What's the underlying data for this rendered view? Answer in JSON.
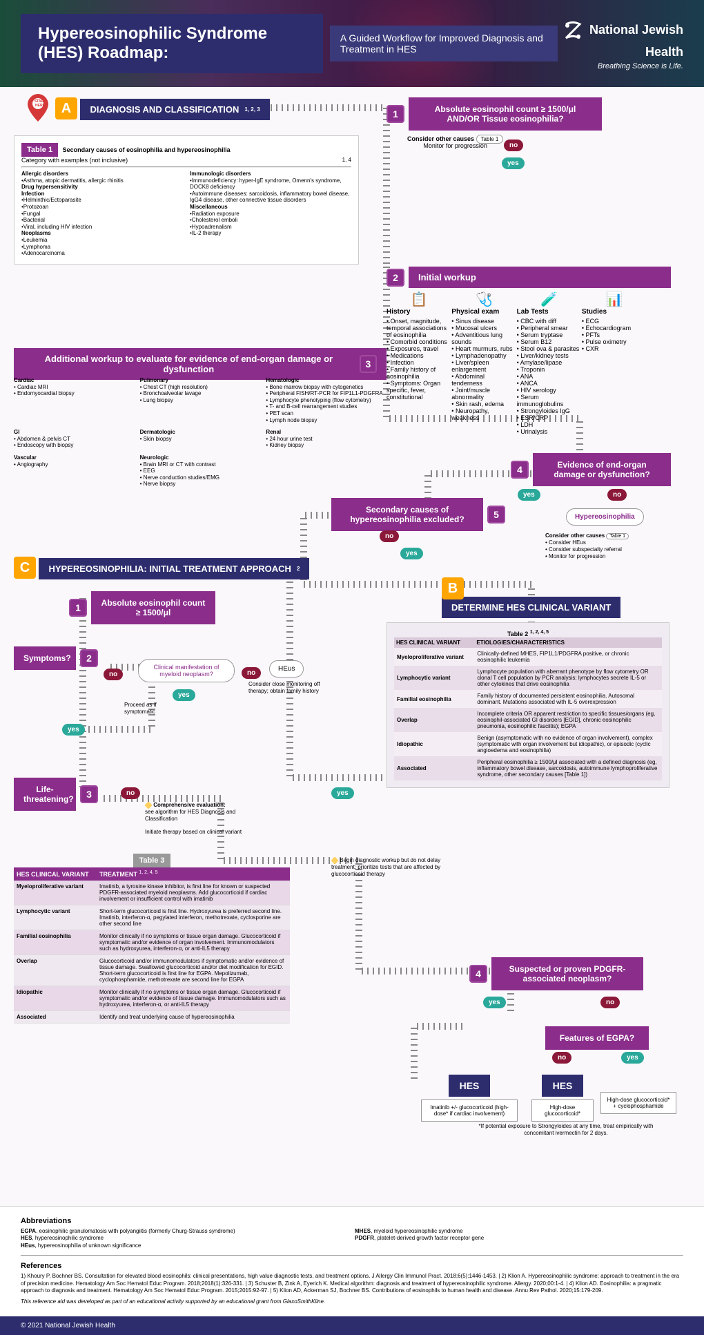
{
  "header": {
    "title": "Hypereosinophilic Syndrome (HES) Roadmap:",
    "subtitle": "A Guided Workflow for Improved Diagnosis and Treatment in HES",
    "org_name": "National Jewish Health",
    "tagline": "Breathing Science is Life."
  },
  "sectionA": {
    "letter": "A",
    "title": "DIAGNOSIS AND CLASSIFICATION",
    "refs": "1, 2, 3",
    "start_here": "START HERE",
    "q1_num": "1",
    "q1": "Absolute eosinophil count ≥ 1500/μl AND/OR Tissue eosinophilia?",
    "consider": "Consider other causes",
    "consider_sub": "Monitor for progression",
    "table1_ref": "Table 1"
  },
  "table1": {
    "label": "Table 1",
    "title": "Secondary causes of eosinophilia and hypereosinophilia",
    "subtitle": "Category with examples (not inclusive)",
    "refs": "1, 4",
    "cols": [
      {
        "h": "Allergic disorders",
        "items": [
          "Asthma, atopic dermatitis, allergic rhinitis"
        ]
      },
      {
        "h": "Drug hypersensitivity",
        "items": []
      },
      {
        "h": "Infection",
        "items": [
          "Helminthic/Ectoparasite",
          "Protozoan",
          "Fungal",
          "Bacterial",
          "Viral, including HIV infection"
        ]
      },
      {
        "h": "Neoplasms",
        "items": [
          "Leukemia",
          "Lymphoma",
          "Adenocarcinoma"
        ]
      },
      {
        "h": "Immunologic disorders",
        "items": [
          "Immunodeficiency: hyper-IgE syndrome, Omenn's syndrome, DOCK8 deficiency",
          "Autoimmune diseases: sarcoidosis, inflammatory bowel disease, IgG4 disease, other connective tissue disorders"
        ]
      },
      {
        "h": "Miscellaneous",
        "items": [
          "Radiation exposure",
          "Cholesterol emboli",
          "Hypoadrenalism",
          "IL-2 therapy"
        ]
      }
    ]
  },
  "workup": {
    "num": "2",
    "title": "Initial workup",
    "cols": [
      {
        "h": "History",
        "items": [
          "Onset, magnitude, temporal associations of eosinophilia",
          "Comorbid conditions",
          "Exposures, travel",
          "Medications",
          "Infection",
          "Family history of eosinophilia",
          "Symptoms: Organ specific, fever, constitutional"
        ]
      },
      {
        "h": "Physical exam",
        "items": [
          "Sinus disease",
          "Mucosal ulcers",
          "Adventitious lung sounds",
          "Heart murmurs, rubs",
          "Lymphadenopathy",
          "Liver/spleen enlargement",
          "Abdominal tenderness",
          "Joint/muscle abnormality",
          "Skin rash, edema",
          "Neuropathy, weakness"
        ]
      },
      {
        "h": "Lab Tests",
        "items": [
          "CBC with diff",
          "Peripheral smear",
          "Serum tryptase",
          "Serum B12",
          "Stool ova & parasites",
          "Liver/kidney tests",
          "Amylase/lipase",
          "Troponin",
          "ANA",
          "ANCA",
          "HIV serology",
          "Serum immunoglobulins",
          "Strongyloides IgG",
          "ESR/CRP",
          "LDH",
          "Urinalysis"
        ]
      },
      {
        "h": "Studies",
        "items": [
          "ECG",
          "Echocardiogram",
          "PFTs",
          "Pulse oximetry",
          "CXR"
        ]
      }
    ]
  },
  "addl_workup": {
    "num": "3",
    "title": "Additional workup to evaluate for evidence of end-organ damage or dysfunction",
    "groups": [
      {
        "h": "Cardiac",
        "items": [
          "Cardiac MRI",
          "Endomyocardial biopsy"
        ]
      },
      {
        "h": "Pulmonary",
        "items": [
          "Chest CT (high resolution)",
          "Bronchoalveolar lavage",
          "Lung biopsy"
        ]
      },
      {
        "h": "Hematologic",
        "items": [
          "Bone marrow biopsy with cytogenetics",
          "Peripheral FISH/RT-PCR for FIP1L1-PDGFRA",
          "Lymphocyte phenotyping (flow cytometry)",
          "T- and B-cell rearrangement studies",
          "PET scan",
          "Lymph node biopsy"
        ]
      },
      {
        "h": "GI",
        "items": [
          "Abdomen & pelvis CT",
          "Endoscopy with biopsy"
        ]
      },
      {
        "h": "Dermatologic",
        "items": [
          "Skin biopsy"
        ]
      },
      {
        "h": "Renal",
        "items": [
          "24 hour urine test",
          "Kidney biopsy"
        ]
      },
      {
        "h": "Vascular",
        "items": [
          "Angiography"
        ]
      },
      {
        "h": "Neurologic",
        "items": [
          "Brain MRI or CT with contrast",
          "EEG",
          "Nerve conduction studies/EMG",
          "Nerve biopsy"
        ]
      }
    ]
  },
  "q4": {
    "num": "4",
    "text": "Evidence of end-organ damage or dysfunction?"
  },
  "q5": {
    "num": "5",
    "text": "Secondary causes of hypereosinophilia excluded?"
  },
  "hyper_box": {
    "title": "Hypereosinophilia",
    "lines": [
      "Consider other causes",
      "• Consider HEus",
      "• Consider subspecialty referral",
      "• Monitor for progression"
    ],
    "table_ref": "Table 1"
  },
  "sectionB": {
    "letter": "B",
    "title": "DETERMINE HES CLINICAL VARIANT"
  },
  "table2": {
    "label": "Table 2",
    "refs": "1, 2, 4, 5",
    "h1": "HES CLINICAL VARIANT",
    "h2": "ETIOLOGIES/CHARACTERISTICS",
    "rows": [
      {
        "v": "Myeloproliferative variant",
        "d": "Clinically-defined MHES, FIP1L1/PDGFRA positive, or chronic eosinophilic leukemia"
      },
      {
        "v": "Lymphocytic variant",
        "d": "Lymphocyte population with aberrant phenotype by flow cytometry OR clonal T cell population by PCR analysis; lymphocytes secrete IL-5 or other cytokines that drive eosinophilia"
      },
      {
        "v": "Familial eosinophilia",
        "d": "Family history of documented persistent eosinophilia. Autosomal dominant. Mutations associated with IL-5 overexpression"
      },
      {
        "v": "Overlap",
        "d": "Incomplete criteria OR apparent restriction to specific tissues/organs (eg, eosinophil-associated GI disorders [EGID], chronic eosinophilic pneumonia, eosinophilic fasciitis); EGPA"
      },
      {
        "v": "Idiopathic",
        "d": "Benign (asymptomatic with no evidence of organ involvement), complex (symptomatic with organ involvement but idiopathic), or episodic (cyclic angioedema and eosinophilia)"
      },
      {
        "v": "Associated",
        "d": "Peripheral eosinophilia ≥ 1500/μl associated with a defined diagnosis (eg, inflammatory bowel disease, sarcoidosis, autoimmune lymphoproliferative syndrome, other secondary causes [Table 1])"
      }
    ]
  },
  "sectionC": {
    "letter": "C",
    "title": "HYPEREOSINOPHILIA: INITIAL TREATMENT APPROACH",
    "refs": "2",
    "q1_num": "1",
    "q1": "Absolute eosinophil count ≥ 1500/μl",
    "q2_num": "2",
    "q2": "Symptoms?",
    "q3_num": "3",
    "q3": "Life-threatening?",
    "clin_man": "Clinical manifestation of myeloid neoplasm?",
    "heus": "HEus",
    "heus_sub": "Consider close monitoring off therapy; obtain family history",
    "proceed": "Proceed as if symptomatic",
    "comp_eval_title": "Comprehensive evaluation:",
    "comp_eval_lines": [
      "see algorithm for HES Diagnosis and Classification",
      "Initiate therapy based on clinical variant"
    ],
    "begin_note": "Begin diagnostic workup but do not delay treatment; prioritize tests that are affected by glucocorticoid therapy"
  },
  "q_pdgfr": {
    "num": "4",
    "text": "Suspected or proven PDGFR-associated neoplasm?"
  },
  "q_egpa": "Features of EGPA?",
  "hes_label": "HES",
  "treat1": "Imatinib +/- glucocorticoid (high-dose* if cardiac involvement)",
  "treat2": "High-dose glucocorticoid*",
  "treat3": "High-dose glucocorticoid* + cyclophosphamide",
  "footnote": "*If potential exposure to Strongyloides at any time, treat empirically with concomitant ivermectin for 2 days.",
  "table3": {
    "label": "Table 3",
    "refs": "1, 2, 4, 5",
    "h1": "HES CLINICAL VARIANT",
    "h2": "TREATMENT",
    "rows": [
      {
        "v": "Myeloproliferative variant",
        "d": "Imatinib, a tyrosine kinase inhibitor, is first line for known or suspected PDGFR-associated myeloid neoplasms. Add glucocorticoid if cardiac involvement or insufficient control with imatinib"
      },
      {
        "v": "Lymphocytic variant",
        "d": "Short-term glucocorticoid is first line. Hydroxyurea is preferred second line. Imatinib, interferon-α, pegylated interferon, methotrexate, cyclosporine are other second line"
      },
      {
        "v": "Familial eosinophilia",
        "d": "Monitor clinically if no symptoms or tissue organ damage. Glucocorticoid if symptomatic and/or evidence of organ involvement. Immunomodulators such as hydroxyurea, interferon-α, or anti-IL5 therapy"
      },
      {
        "v": "Overlap",
        "d": "Glucocorticoid and/or immunomodulators if symptomatic and/or evidence of tissue damage. Swallowed glucocorticoid and/or diet modification for EGID. Short-term glucocorticoid is first line for EGPA. Mepolizumab, cyclophosphamide, methotrexate are second line for EGPA"
      },
      {
        "v": "Idiopathic",
        "d": "Monitor clinically if no symptoms or tissue organ damage. Glucocorticoid if symptomatic and/or evidence of tissue damage. Immunomodulators such as hydroxyurea, interferon-α, or anti-IL5 therapy"
      },
      {
        "v": "Associated",
        "d": "Identify and treat underlying cause of hypereosinophilia"
      }
    ]
  },
  "abbrev": {
    "title": "Abbreviations",
    "items": [
      {
        "k": "EGPA",
        "v": "eosinophilic granulomatosis with polyangiitis (formerly Churg-Strauss syndrome)"
      },
      {
        "k": "HES",
        "v": "hypereosinophilic syndrome"
      },
      {
        "k": "HEus",
        "v": "hypereosinophilia of unknown significance"
      },
      {
        "k": "MHES",
        "v": "myeloid hypereosinophilic syndrome"
      },
      {
        "k": "PDGFR",
        "v": "platelet-derived growth factor receptor gene"
      }
    ]
  },
  "refs": {
    "title": "References",
    "text": "1) Khoury P, Bochner BS. Consultation for elevated blood eosinophils: clinical presentations, high value diagnostic tests, and treatment options. J Allergy Clin Immunol Pract. 2018;6(5):1446-1453. | 2) Klion A. Hypereosinophilic syndrome: approach to treatment in the era of precision medicine. Hematology Am Soc Hematol Educ Program. 2018;2018(1):326-331. | 3) Schuster B, Zink A, Eyerich K. Medical algorithm: diagnosis and treatment of hypereosinophilic syndrome. Allergy. 2020;00:1-4. | 4) Klion AD. Eosinophilia: a pragmatic approach to diagnosis and treatment. Hematology Am Soc Hematol Educ Program. 2015;2015:92-97. | 5) Klion AD, Ackerman SJ, Bochner BS. Contributions of eosinophils to human health and disease. Annu Rev Pathol. 2020;15:179-209."
  },
  "disclaimer": "This reference aid was developed as part of an educational activity supported by an educational grant from GlaxoSmithKline.",
  "copyright": "© 2021 National Jewish Health",
  "yes": "yes",
  "no": "no",
  "colors": {
    "navy": "#2d2d6e",
    "purple": "#8b2d8b",
    "orange": "#ffa500",
    "teal": "#2aa89a",
    "maroon": "#8b1838",
    "road": "#888888",
    "bg": "#faf8fb"
  }
}
